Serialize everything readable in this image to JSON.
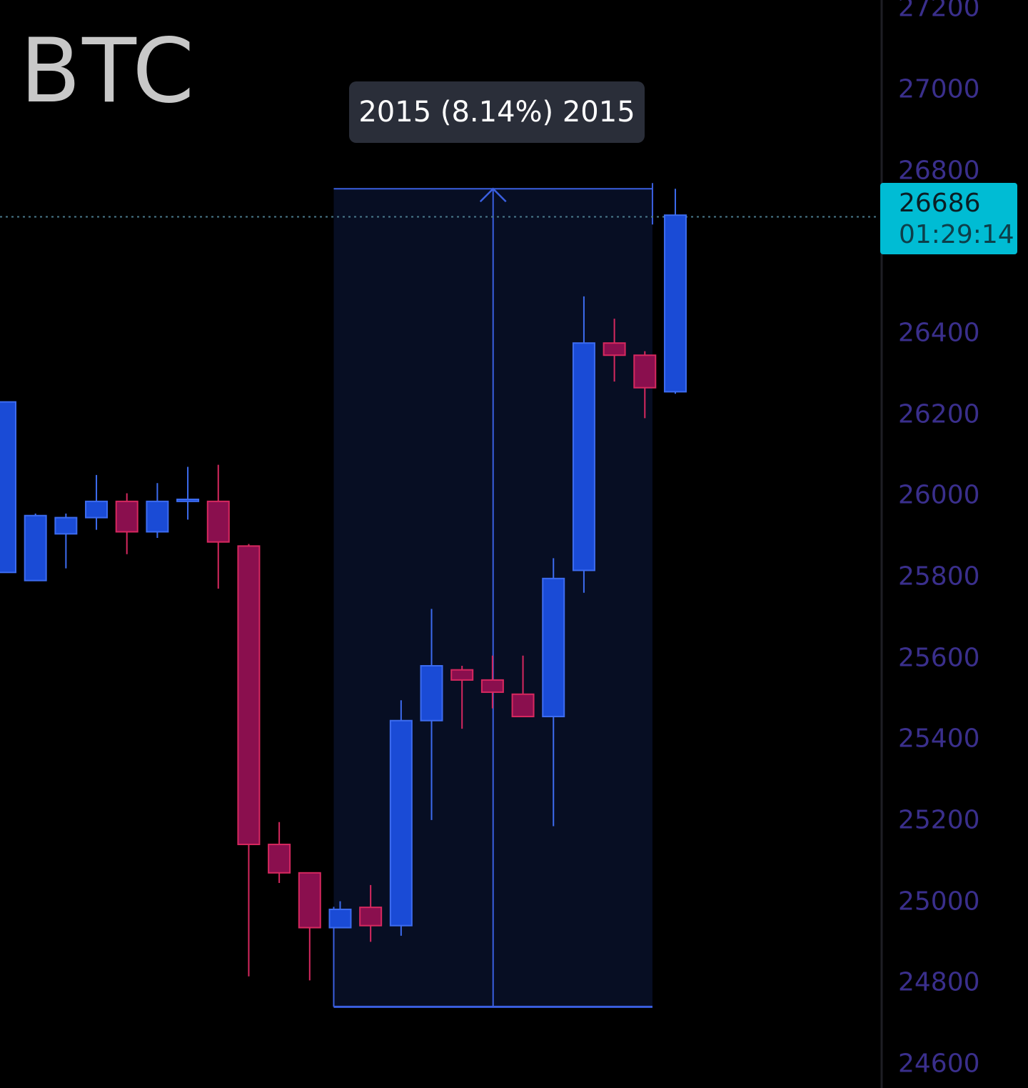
{
  "symbol": "BTC",
  "measure": {
    "label": "2015 (8.14%) 2015",
    "from_price": 24740,
    "to_price": 26755
  },
  "last_price": {
    "price": "26686",
    "countdown": "01:29:14"
  },
  "colors": {
    "background": "#000000",
    "up": "#1a4bd6",
    "up_border": "#3d6cf0",
    "down": "#8a0f4e",
    "down_border": "#d6285f",
    "measure_fill": "#070e23",
    "measure_line": "#3a5fe0",
    "axis_text": "#3a2f8c",
    "price_tag": "#00bcd4"
  },
  "chart_data": {
    "type": "candlestick",
    "ylim": [
      24540,
      27220
    ],
    "y_ticks": [
      27200,
      27000,
      26800,
      26600,
      26400,
      26200,
      26000,
      25800,
      25600,
      25400,
      25200,
      25000,
      24800,
      24600
    ],
    "y_tick_labels": [
      "27200",
      "27000",
      "26800",
      "",
      "26400",
      "26200",
      "26000",
      "25800",
      "25600",
      "25400",
      "25200",
      "25000",
      "24800",
      "24600"
    ],
    "candles": [
      {
        "open": 25810,
        "high": 26230,
        "low": 25810,
        "close": 26230
      },
      {
        "open": 25790,
        "high": 25955,
        "low": 25790,
        "close": 25950
      },
      {
        "open": 25905,
        "high": 25955,
        "low": 25820,
        "close": 25945
      },
      {
        "open": 25945,
        "high": 26050,
        "low": 25915,
        "close": 25985
      },
      {
        "open": 25985,
        "high": 26005,
        "low": 25855,
        "close": 25910
      },
      {
        "open": 25910,
        "high": 26030,
        "low": 25895,
        "close": 25985
      },
      {
        "open": 25985,
        "high": 26070,
        "low": 25940,
        "close": 25990
      },
      {
        "open": 25985,
        "high": 26075,
        "low": 25770,
        "close": 25885
      },
      {
        "open": 25875,
        "high": 25880,
        "low": 24815,
        "close": 25140
      },
      {
        "open": 25140,
        "high": 25195,
        "low": 25045,
        "close": 25070
      },
      {
        "open": 25070,
        "high": 25070,
        "low": 24805,
        "close": 24935
      },
      {
        "open": 24935,
        "high": 25000,
        "low": 24935,
        "close": 24980
      },
      {
        "open": 24985,
        "high": 25040,
        "low": 24900,
        "close": 24940
      },
      {
        "open": 24940,
        "high": 25495,
        "low": 24915,
        "close": 25445
      },
      {
        "open": 25445,
        "high": 25720,
        "low": 25200,
        "close": 25580
      },
      {
        "open": 25570,
        "high": 25580,
        "low": 25425,
        "close": 25545
      },
      {
        "open": 25545,
        "high": 25605,
        "low": 25475,
        "close": 25515
      },
      {
        "open": 25510,
        "high": 25605,
        "low": 25455,
        "close": 25455
      },
      {
        "open": 25455,
        "high": 25845,
        "low": 25185,
        "close": 25795
      },
      {
        "open": 25815,
        "high": 26490,
        "low": 25760,
        "close": 26375
      },
      {
        "open": 26375,
        "high": 26435,
        "low": 26280,
        "close": 26345
      },
      {
        "open": 26345,
        "high": 26355,
        "low": 26190,
        "close": 26265
      },
      {
        "open": 26255,
        "high": 26755,
        "low": 26250,
        "close": 26690
      }
    ]
  }
}
